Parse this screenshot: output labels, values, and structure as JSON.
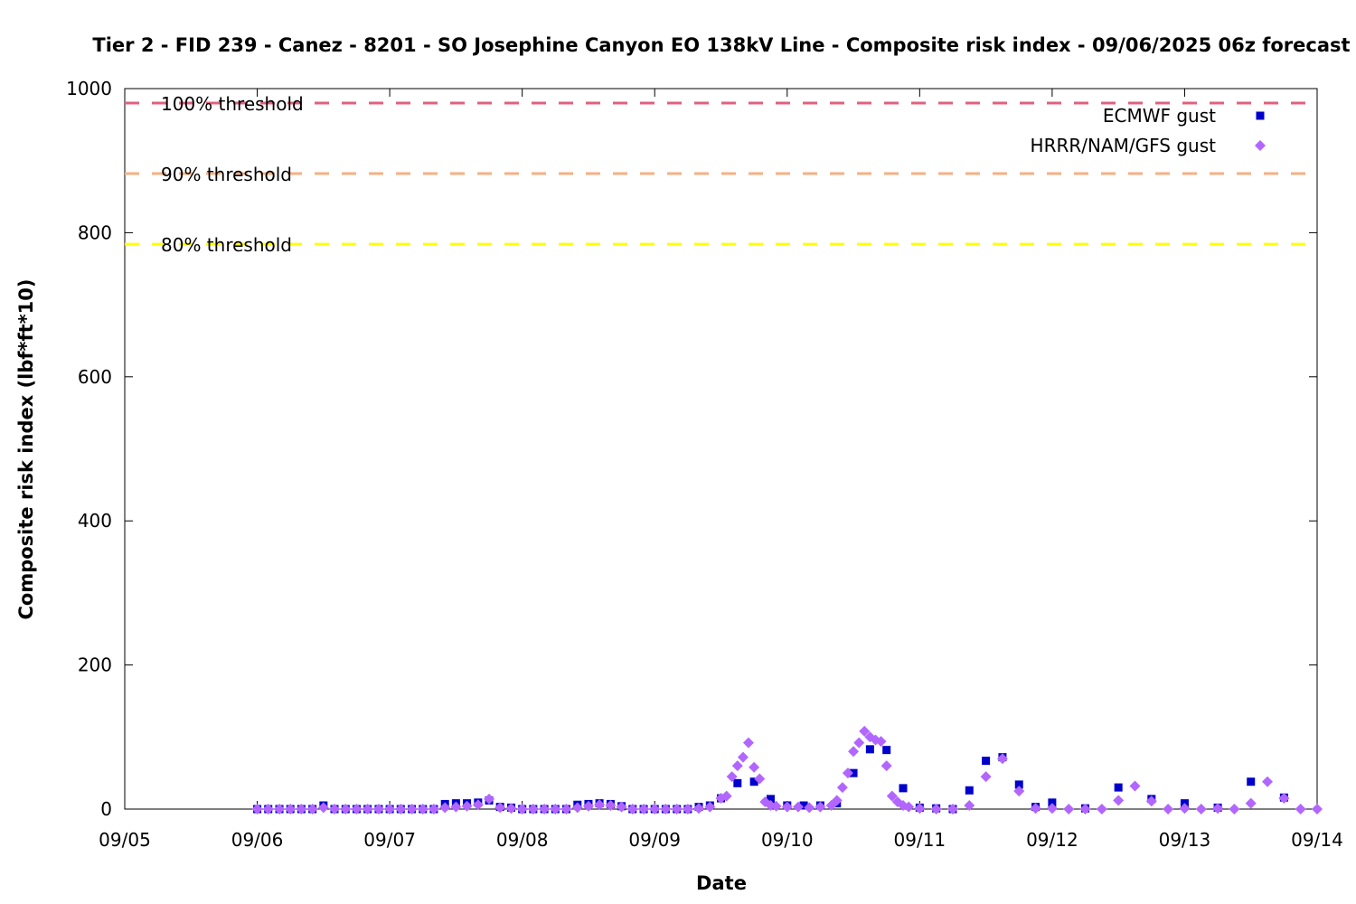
{
  "chart_data": {
    "type": "scatter",
    "title": "Tier 2 - FID 239 - Canez - 8201 - SO Josephine Canyon EO 138kV Line - Composite risk index - 09/06/2025 06z forecast",
    "xlabel": "Date",
    "ylabel": "Composite risk index (lbf*ft*10)",
    "x_tick_labels": [
      "09/05",
      "09/06",
      "09/07",
      "09/08",
      "09/09",
      "09/10",
      "09/11",
      "09/12",
      "09/13",
      "09/14"
    ],
    "xlim_days": [
      0,
      9
    ],
    "ylim": [
      0,
      1000
    ],
    "y_ticks": [
      0,
      200,
      400,
      600,
      800,
      1000
    ],
    "grid": false,
    "legend_position": "top-right",
    "thresholds": [
      {
        "label": "100% threshold",
        "value": 980,
        "color": "#e06080"
      },
      {
        "label": "90% threshold",
        "value": 882,
        "color": "#f4b183"
      },
      {
        "label": "80% threshold",
        "value": 784,
        "color": "#ffff00"
      }
    ],
    "series": [
      {
        "name": "ECMWF gust",
        "marker": "square",
        "color": "#0000cc",
        "points": [
          [
            1.0,
            0
          ],
          [
            1.083,
            0
          ],
          [
            1.167,
            0
          ],
          [
            1.25,
            0
          ],
          [
            1.333,
            0
          ],
          [
            1.417,
            0
          ],
          [
            1.5,
            5
          ],
          [
            1.583,
            0
          ],
          [
            1.667,
            0
          ],
          [
            1.75,
            0
          ],
          [
            1.833,
            0
          ],
          [
            1.917,
            0
          ],
          [
            2.0,
            0
          ],
          [
            2.083,
            0
          ],
          [
            2.167,
            0
          ],
          [
            2.25,
            0
          ],
          [
            2.333,
            0
          ],
          [
            2.417,
            7
          ],
          [
            2.5,
            8
          ],
          [
            2.583,
            8
          ],
          [
            2.667,
            9
          ],
          [
            2.75,
            12
          ],
          [
            2.833,
            3
          ],
          [
            2.917,
            2
          ],
          [
            3.0,
            0
          ],
          [
            3.083,
            0
          ],
          [
            3.167,
            0
          ],
          [
            3.25,
            0
          ],
          [
            3.333,
            0
          ],
          [
            3.417,
            6
          ],
          [
            3.5,
            7
          ],
          [
            3.583,
            8
          ],
          [
            3.667,
            7
          ],
          [
            3.75,
            4
          ],
          [
            3.833,
            0
          ],
          [
            3.917,
            0
          ],
          [
            4.0,
            0
          ],
          [
            4.083,
            0
          ],
          [
            4.167,
            0
          ],
          [
            4.25,
            0
          ],
          [
            4.333,
            3
          ],
          [
            4.417,
            5
          ],
          [
            4.5,
            15
          ],
          [
            4.625,
            36
          ],
          [
            4.75,
            38
          ],
          [
            4.875,
            14
          ],
          [
            5.0,
            5
          ],
          [
            5.125,
            5
          ],
          [
            5.25,
            5
          ],
          [
            5.375,
            8
          ],
          [
            5.5,
            50
          ],
          [
            5.625,
            83
          ],
          [
            5.75,
            82
          ],
          [
            5.875,
            29
          ],
          [
            6.0,
            2
          ],
          [
            6.125,
            1
          ],
          [
            6.25,
            0
          ],
          [
            6.375,
            26
          ],
          [
            6.5,
            67
          ],
          [
            6.625,
            72
          ],
          [
            6.75,
            34
          ],
          [
            6.875,
            3
          ],
          [
            7.0,
            9
          ],
          [
            7.25,
            1
          ],
          [
            7.5,
            30
          ],
          [
            7.75,
            14
          ],
          [
            8.0,
            8
          ],
          [
            8.25,
            2
          ],
          [
            8.5,
            38
          ],
          [
            8.75,
            16
          ]
        ]
      },
      {
        "name": "HRRR/NAM/GFS gust",
        "marker": "diamond",
        "color": "#b266ff",
        "points": [
          [
            1.0,
            0
          ],
          [
            1.083,
            0
          ],
          [
            1.167,
            0
          ],
          [
            1.25,
            0
          ],
          [
            1.333,
            0
          ],
          [
            1.417,
            0
          ],
          [
            1.5,
            2
          ],
          [
            1.583,
            0
          ],
          [
            1.667,
            0
          ],
          [
            1.75,
            0
          ],
          [
            1.833,
            0
          ],
          [
            1.917,
            0
          ],
          [
            2.0,
            0
          ],
          [
            2.083,
            0
          ],
          [
            2.167,
            0
          ],
          [
            2.25,
            0
          ],
          [
            2.333,
            0
          ],
          [
            2.417,
            2
          ],
          [
            2.5,
            3
          ],
          [
            2.583,
            4
          ],
          [
            2.667,
            6
          ],
          [
            2.75,
            14
          ],
          [
            2.833,
            2
          ],
          [
            2.917,
            1
          ],
          [
            3.0,
            0
          ],
          [
            3.083,
            0
          ],
          [
            3.167,
            0
          ],
          [
            3.25,
            0
          ],
          [
            3.333,
            0
          ],
          [
            3.417,
            2
          ],
          [
            3.5,
            4
          ],
          [
            3.583,
            6
          ],
          [
            3.667,
            5
          ],
          [
            3.75,
            3
          ],
          [
            3.833,
            0
          ],
          [
            3.917,
            0
          ],
          [
            4.0,
            0
          ],
          [
            4.083,
            0
          ],
          [
            4.167,
            0
          ],
          [
            4.25,
            0
          ],
          [
            4.333,
            1
          ],
          [
            4.417,
            3
          ],
          [
            4.5,
            15
          ],
          [
            4.542,
            18
          ],
          [
            4.583,
            45
          ],
          [
            4.625,
            60
          ],
          [
            4.667,
            72
          ],
          [
            4.708,
            92
          ],
          [
            4.75,
            58
          ],
          [
            4.792,
            42
          ],
          [
            4.833,
            10
          ],
          [
            4.875,
            5
          ],
          [
            4.917,
            4
          ],
          [
            5.0,
            3
          ],
          [
            5.083,
            3
          ],
          [
            5.167,
            2
          ],
          [
            5.25,
            3
          ],
          [
            5.333,
            5
          ],
          [
            5.375,
            12
          ],
          [
            5.417,
            30
          ],
          [
            5.458,
            50
          ],
          [
            5.5,
            80
          ],
          [
            5.542,
            92
          ],
          [
            5.583,
            108
          ],
          [
            5.625,
            100
          ],
          [
            5.667,
            96
          ],
          [
            5.708,
            94
          ],
          [
            5.75,
            60
          ],
          [
            5.792,
            18
          ],
          [
            5.833,
            10
          ],
          [
            5.875,
            5
          ],
          [
            5.917,
            3
          ],
          [
            6.0,
            1
          ],
          [
            6.125,
            0
          ],
          [
            6.25,
            0
          ],
          [
            6.375,
            5
          ],
          [
            6.5,
            45
          ],
          [
            6.625,
            70
          ],
          [
            6.75,
            25
          ],
          [
            6.875,
            1
          ],
          [
            7.0,
            1
          ],
          [
            7.125,
            0
          ],
          [
            7.25,
            0
          ],
          [
            7.375,
            0
          ],
          [
            7.5,
            12
          ],
          [
            7.625,
            32
          ],
          [
            7.75,
            11
          ],
          [
            7.875,
            0
          ],
          [
            8.0,
            1
          ],
          [
            8.125,
            0
          ],
          [
            8.25,
            1
          ],
          [
            8.375,
            0
          ],
          [
            8.5,
            8
          ],
          [
            8.625,
            38
          ],
          [
            8.75,
            15
          ],
          [
            8.875,
            0
          ],
          [
            9.0,
            0
          ]
        ]
      }
    ]
  }
}
